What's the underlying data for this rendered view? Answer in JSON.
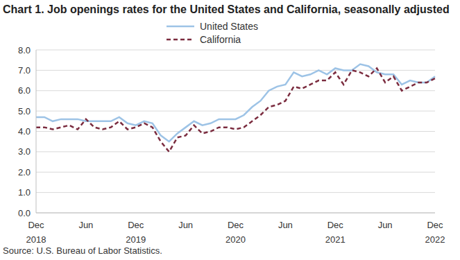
{
  "chart_data": {
    "type": "line",
    "title": "Chart 1. Job openings rates for the United States and California, seasonally adjusted",
    "source": "Source: U.S. Bureau of Labor Statistics.",
    "categories": [
      "Dec 2018",
      null,
      null,
      null,
      null,
      null,
      "Jun",
      null,
      null,
      null,
      null,
      null,
      "Dec 2019",
      null,
      null,
      null,
      null,
      null,
      "Jun",
      null,
      null,
      null,
      null,
      null,
      "Dec 2020",
      null,
      null,
      null,
      null,
      null,
      "Jun",
      null,
      null,
      null,
      null,
      null,
      "Dec 2021",
      null,
      null,
      null,
      null,
      null,
      "Jun",
      null,
      null,
      null,
      null,
      null,
      "Dec 2022"
    ],
    "series": [
      {
        "name": "United States",
        "color": "#9dc3e6",
        "line_style": "solid",
        "values": [
          4.7,
          4.7,
          4.5,
          4.6,
          4.6,
          4.6,
          4.5,
          4.5,
          4.5,
          4.5,
          4.7,
          4.4,
          4.3,
          4.5,
          4.4,
          3.8,
          3.5,
          3.9,
          4.2,
          4.5,
          4.3,
          4.4,
          4.6,
          4.6,
          4.6,
          4.8,
          5.2,
          5.5,
          6.0,
          6.2,
          6.3,
          6.9,
          6.7,
          6.8,
          7.0,
          6.8,
          7.1,
          7.0,
          7.0,
          7.3,
          7.2,
          6.9,
          6.8,
          6.8,
          6.3,
          6.5,
          6.4,
          6.4,
          6.7
        ]
      },
      {
        "name": "California",
        "color": "#7b2c3f",
        "line_style": "dashed",
        "values": [
          4.2,
          4.2,
          4.1,
          4.2,
          4.3,
          4.1,
          4.6,
          4.2,
          4.1,
          4.2,
          4.5,
          4.1,
          4.2,
          4.4,
          4.2,
          3.5,
          3.0,
          3.7,
          3.8,
          4.3,
          3.9,
          4.0,
          4.2,
          4.2,
          4.1,
          4.2,
          4.5,
          4.8,
          5.2,
          5.3,
          5.5,
          6.2,
          6.1,
          6.3,
          6.5,
          6.5,
          6.9,
          6.3,
          7.0,
          6.9,
          6.7,
          7.1,
          6.4,
          6.7,
          6.0,
          6.2,
          6.4,
          6.4,
          6.6
        ]
      }
    ],
    "ylim": [
      0,
      8
    ],
    "yticks": [
      {
        "value": 0,
        "label": "0.0"
      },
      {
        "value": 1,
        "label": "1.0"
      },
      {
        "value": 2,
        "label": "2.0"
      },
      {
        "value": 3,
        "label": "3.0"
      },
      {
        "value": 4,
        "label": "4.0"
      },
      {
        "value": 5,
        "label": "5.0"
      },
      {
        "value": 6,
        "label": "6.0"
      },
      {
        "value": 7,
        "label": "7.0"
      },
      {
        "value": 8,
        "label": "8.0"
      }
    ],
    "grid": true,
    "legend": "top"
  }
}
